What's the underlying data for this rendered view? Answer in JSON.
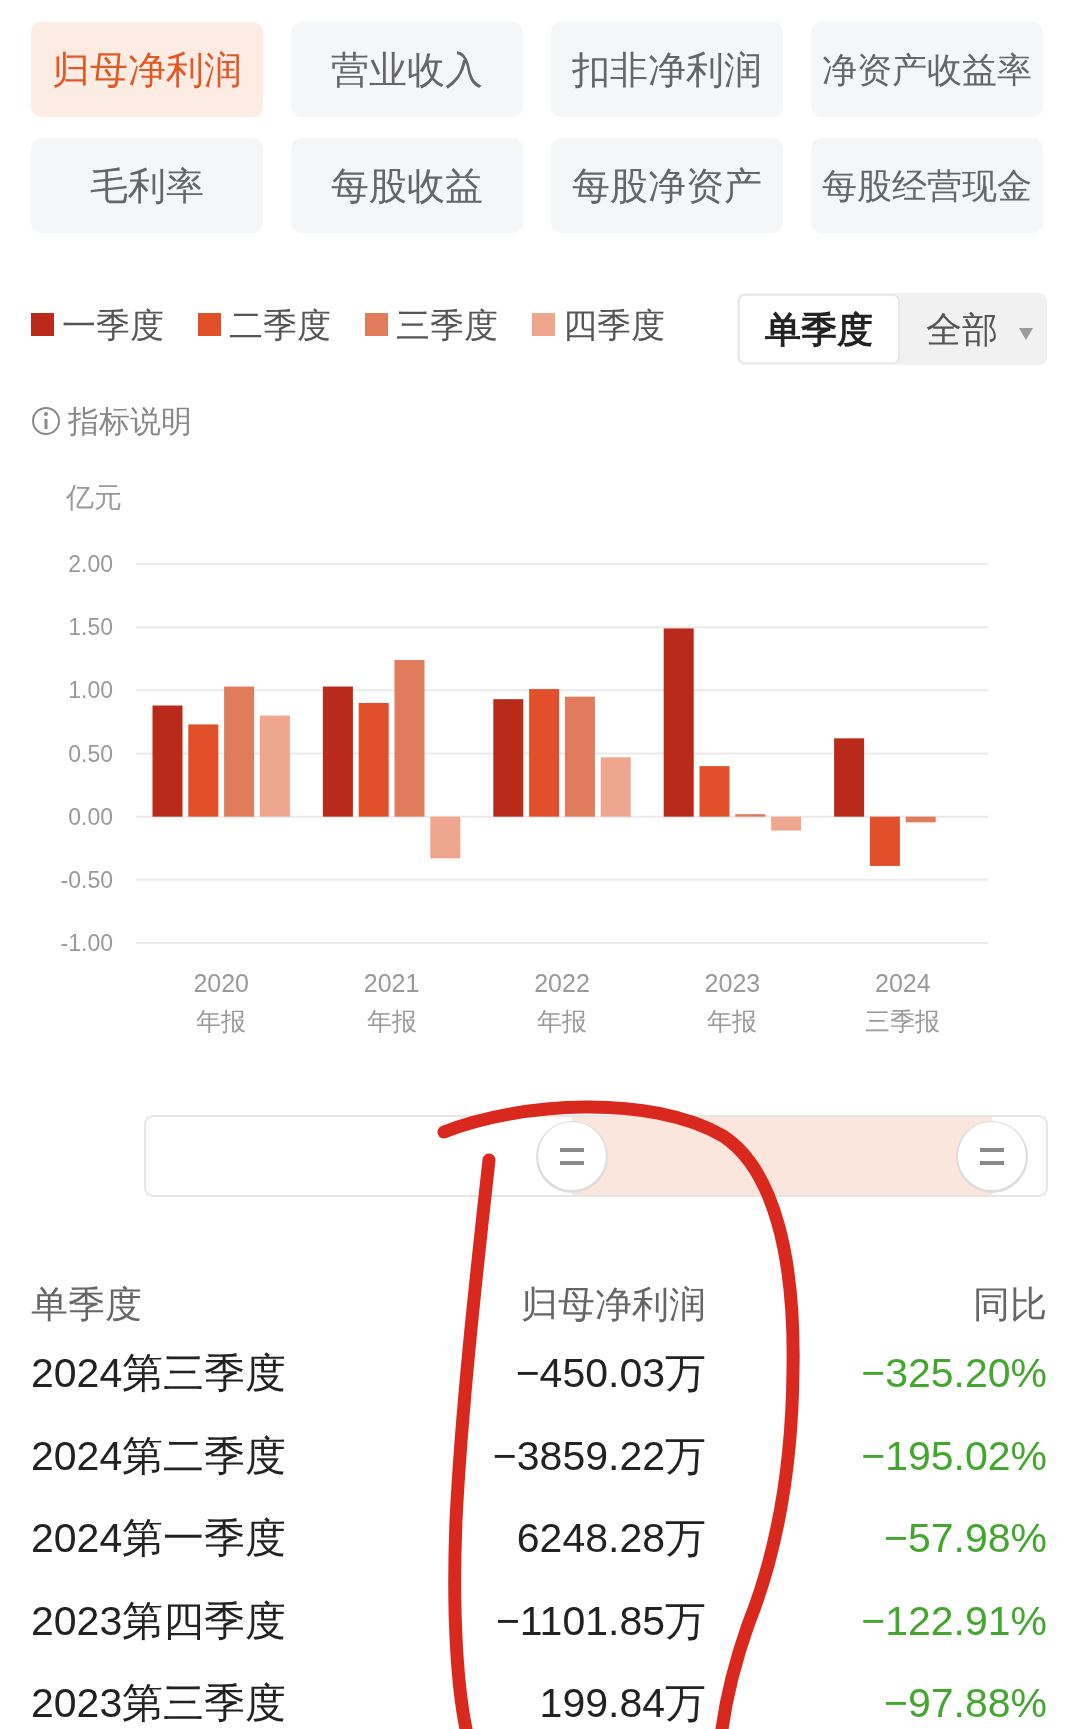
{
  "chart_data": {
    "type": "bar",
    "categories": [
      "2020\n年报",
      "2021\n年报",
      "2022\n年报",
      "2023\n年报",
      "2024\n三季报"
    ],
    "series": [
      {
        "name": "一季度",
        "color": "#b92a1a",
        "values": [
          0.88,
          1.03,
          0.93,
          1.49,
          0.62
        ]
      },
      {
        "name": "二季度",
        "color": "#e2502b",
        "values": [
          0.73,
          0.9,
          1.01,
          0.4,
          -0.39
        ]
      },
      {
        "name": "三季度",
        "color": "#e07b5c",
        "values": [
          1.03,
          1.24,
          0.95,
          0.02,
          -0.045
        ]
      },
      {
        "name": "四季度",
        "color": "#eea68f",
        "values": [
          0.8,
          -0.33,
          0.47,
          -0.11,
          null
        ]
      }
    ],
    "ylabel": "亿元",
    "ylim": [
      -1,
      2
    ],
    "yticks": [
      {
        "value": -1,
        "label": "-1.00"
      },
      {
        "value": -0.5,
        "label": "-0.50"
      },
      {
        "value": 0,
        "label": "0.00"
      },
      {
        "value": 0.5,
        "label": "0.50"
      },
      {
        "value": 1,
        "label": "1.00"
      },
      {
        "value": 1.5,
        "label": "1.50"
      },
      {
        "value": 2,
        "label": "2.00"
      }
    ],
    "grid": "y",
    "legend": "top left",
    "annotations": [
      "归母净利润",
      "营业收入",
      "扣非净利润",
      "净资产收益率",
      "毛利率",
      "每股收益",
      "每股净资产",
      "每股经营现金",
      "单季度",
      "全部",
      "指标说明",
      "单季度",
      "归母净利润",
      "同比",
      "2024第三季度",
      "−450.03万",
      "−325.20%",
      "2024第二季度",
      "−3859.22万",
      "−195.02%",
      "2024第一季度",
      "6248.28万",
      "−57.98%",
      "2023第四季度",
      "−1101.85万",
      "−122.91%",
      "2023第三季度",
      "199.84万",
      "−97.88%"
    ]
  }
}
